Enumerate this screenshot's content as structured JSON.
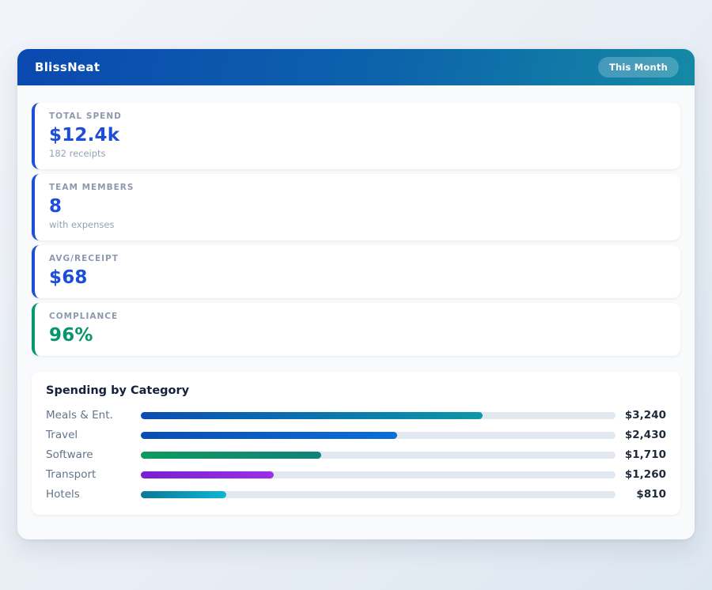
{
  "app": {
    "title": "BlissNeat",
    "period_badge": "This Month"
  },
  "stats": [
    {
      "label": "TOTAL SPEND",
      "value": "$12.4k",
      "sub": "182 receipts",
      "accent": "#1d4ed8"
    },
    {
      "label": "TEAM MEMBERS",
      "value": "8",
      "sub": "with expenses",
      "accent": "#1d4ed8"
    },
    {
      "label": "AVG/RECEIPT",
      "value": "$68",
      "sub": "",
      "accent": "#1d4ed8"
    },
    {
      "label": "COMPLIANCE",
      "value": "96%",
      "sub": "",
      "accent": "#059669"
    }
  ],
  "chart_data": {
    "type": "bar",
    "orientation": "horizontal",
    "title": "Spending by Category",
    "categories": [
      "Meals & Ent.",
      "Travel",
      "Software",
      "Transport",
      "Hotels"
    ],
    "values": [
      3240,
      2430,
      1710,
      1260,
      810
    ],
    "value_labels": [
      "$3,240",
      "$2,430",
      "$1,710",
      "$1,260",
      "$810"
    ],
    "xlim": [
      0,
      4500
    ],
    "grid": false,
    "track_color": "#e2e8f0",
    "bar_gradients": [
      [
        "#0b4db2",
        "#0d97a8"
      ],
      [
        "#0b4db2",
        "#0b6fd6"
      ],
      [
        "#0d9a5e",
        "#12817a"
      ],
      [
        "#7a1fd2",
        "#9a30e9"
      ],
      [
        "#0c7898",
        "#0db5d4"
      ]
    ]
  },
  "colors": {
    "header_gradient_from": "#0a49b0",
    "header_gradient_to": "#1489a5",
    "panel_bg": "#f8fafc",
    "value_blue": "#1d4ed8",
    "value_green": "#059669"
  }
}
